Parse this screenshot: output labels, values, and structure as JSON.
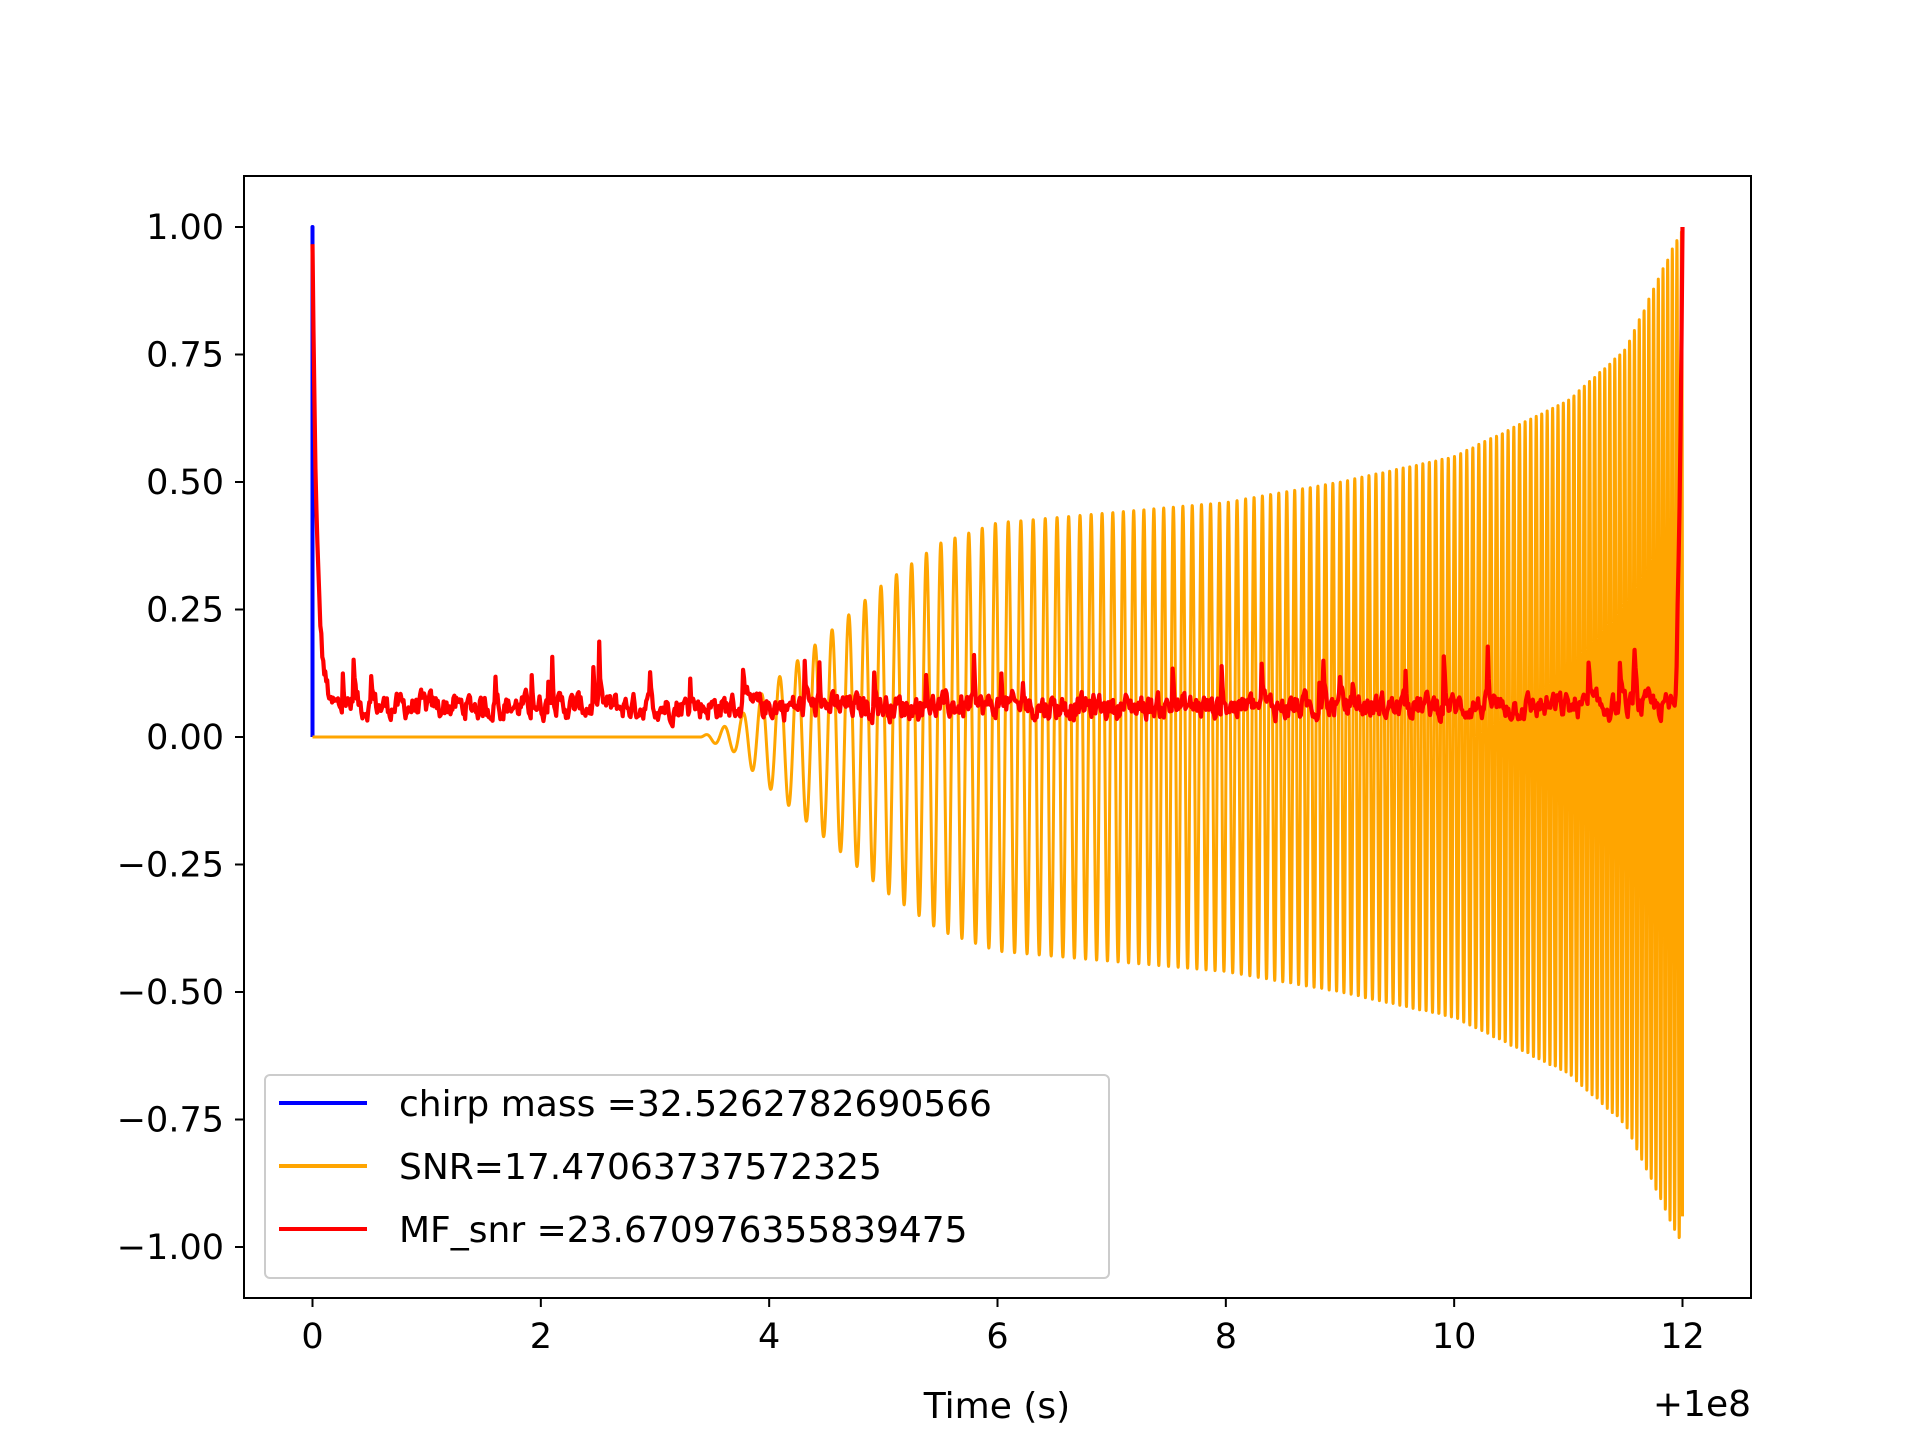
{
  "chart_data": {
    "type": "line",
    "title": "",
    "xlabel": "Time (s)",
    "ylabel": "",
    "x_offset_label": "+1e8",
    "xlim": [
      -0.6,
      12.6
    ],
    "ylim": [
      -1.1,
      1.1
    ],
    "x_ticks": [
      0,
      2,
      4,
      6,
      8,
      10,
      12
    ],
    "x_tick_labels": [
      "0",
      "2",
      "4",
      "6",
      "8",
      "10",
      "12"
    ],
    "y_ticks": [
      1.0,
      0.75,
      0.5,
      0.25,
      0.0,
      -0.25,
      -0.5,
      -0.75,
      -1.0
    ],
    "y_tick_labels": [
      "1.00",
      "0.75",
      "0.50",
      "0.25",
      "0.00",
      "−0.25",
      "−0.50",
      "−0.75",
      "−1.00"
    ],
    "grid": false,
    "legend_position": "lower-left",
    "series": [
      {
        "name": "chirp mass =32.5262782690566",
        "color": "#0000ff",
        "kind": "impulse",
        "x": [
          0.0,
          0.0,
          0.0
        ],
        "y": [
          0.0,
          1.0,
          0.0
        ]
      },
      {
        "name": "SNR=17.47063737572325",
        "color": "#ffa500",
        "kind": "chirp",
        "x_start": 0.0,
        "x_end": 12.0,
        "onset": 3.4,
        "envelope_x": [
          3.4,
          3.7,
          4.0,
          4.5,
          5.0,
          5.5,
          6.0,
          7.0,
          8.0,
          9.0,
          10.0,
          11.0,
          11.5,
          12.0
        ],
        "envelope_y": [
          0.0,
          0.03,
          0.1,
          0.2,
          0.3,
          0.38,
          0.42,
          0.44,
          0.46,
          0.5,
          0.55,
          0.66,
          0.76,
          1.0
        ],
        "freq_start_hz": 6,
        "freq_end_hz": 25,
        "final_value": -0.94
      },
      {
        "name": "MF_snr =23.670976355839475",
        "color": "#ff0000",
        "kind": "noise",
        "x_start": 0.0,
        "x_end": 12.0,
        "start_value": 0.9,
        "baseline": 0.06,
        "end_value": 1.0
      }
    ]
  }
}
